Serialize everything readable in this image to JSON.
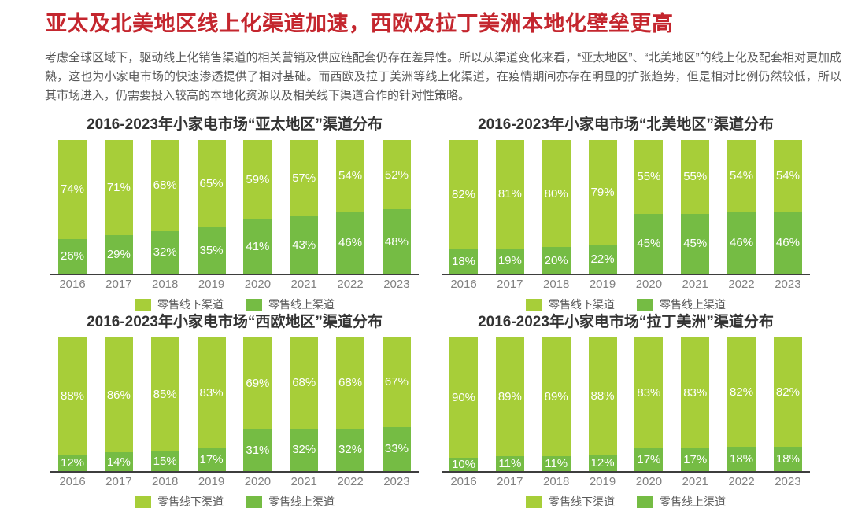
{
  "header": {
    "title": "亚太及北美地区线上化渠道加速，西欧及拉丁美洲本地化壁垒更高",
    "paragraph": "考虑全球区域下，驱动线上化销售渠道的相关营销及供应链配套仍存在差异性。所以从渠道变化来看，“亚太地区”、“北美地区”的线上化及配套相对更加成熟，这也为小家电市场的快速渗透提供了相对基础。而西欧及拉丁美洲等线上化渠道，在疫情期间亦存在明显的扩张趋势，但是相对比例仍然较低，所以其市场进入，仍需要投入较高的本地化资源以及相关线下渠道合作的针对性策略。"
  },
  "colors": {
    "title_red": "#c4262e",
    "body_gray": "#595959",
    "offline_green": "#a7ce39",
    "online_green": "#75bc44",
    "axis_dark": "#3e3e3e",
    "label_white": "#ffffff",
    "year_gray": "#808080"
  },
  "legend": {
    "offline_label": "零售线下渠道",
    "online_label": "零售线上渠道"
  },
  "chart_data": [
    {
      "type": "bar",
      "stacked": true,
      "title": "2016-2023年小家电市场“亚太地区”渠道分布",
      "categories": [
        "2016",
        "2017",
        "2018",
        "2019",
        "2020",
        "2021",
        "2022",
        "2023"
      ],
      "series": [
        {
          "name": "零售线下渠道",
          "color_key": "offline_green",
          "values": [
            74,
            71,
            68,
            65,
            59,
            57,
            54,
            52
          ]
        },
        {
          "name": "零售线上渠道",
          "color_key": "online_green",
          "values": [
            26,
            29,
            32,
            35,
            41,
            43,
            46,
            48
          ]
        }
      ],
      "value_suffix": "%",
      "ylim": [
        0,
        100
      ],
      "grid": false,
      "legend_position": "bottom"
    },
    {
      "type": "bar",
      "stacked": true,
      "title": "2016-2023年小家电市场“北美地区”渠道分布",
      "categories": [
        "2016",
        "2017",
        "2018",
        "2019",
        "2020",
        "2021",
        "2022",
        "2023"
      ],
      "series": [
        {
          "name": "零售线下渠道",
          "color_key": "offline_green",
          "values": [
            82,
            81,
            80,
            79,
            55,
            55,
            54,
            54
          ]
        },
        {
          "name": "零售线上渠道",
          "color_key": "online_green",
          "values": [
            18,
            19,
            20,
            22,
            45,
            45,
            46,
            46
          ]
        }
      ],
      "value_suffix": "%",
      "ylim": [
        0,
        100
      ],
      "grid": false,
      "legend_position": "bottom"
    },
    {
      "type": "bar",
      "stacked": true,
      "title": "2016-2023年小家电市场“西欧地区”渠道分布",
      "categories": [
        "2016",
        "2017",
        "2018",
        "2019",
        "2020",
        "2021",
        "2022",
        "2023"
      ],
      "series": [
        {
          "name": "零售线下渠道",
          "color_key": "offline_green",
          "values": [
            88,
            86,
            85,
            83,
            69,
            68,
            68,
            67
          ]
        },
        {
          "name": "零售线上渠道",
          "color_key": "online_green",
          "values": [
            12,
            14,
            15,
            17,
            31,
            32,
            32,
            33
          ]
        }
      ],
      "value_suffix": "%",
      "ylim": [
        0,
        100
      ],
      "grid": false,
      "legend_position": "bottom"
    },
    {
      "type": "bar",
      "stacked": true,
      "title": "2016-2023年小家电市场“拉丁美洲”渠道分布",
      "categories": [
        "2016",
        "2017",
        "2018",
        "2019",
        "2020",
        "2021",
        "2022",
        "2023"
      ],
      "series": [
        {
          "name": "零售线下渠道",
          "color_key": "offline_green",
          "values": [
            90,
            89,
            89,
            88,
            83,
            83,
            82,
            82
          ]
        },
        {
          "name": "零售线上渠道",
          "color_key": "online_green",
          "values": [
            10,
            11,
            11,
            12,
            17,
            17,
            18,
            18
          ]
        }
      ],
      "value_suffix": "%",
      "ylim": [
        0,
        100
      ],
      "grid": false,
      "legend_position": "bottom"
    }
  ]
}
